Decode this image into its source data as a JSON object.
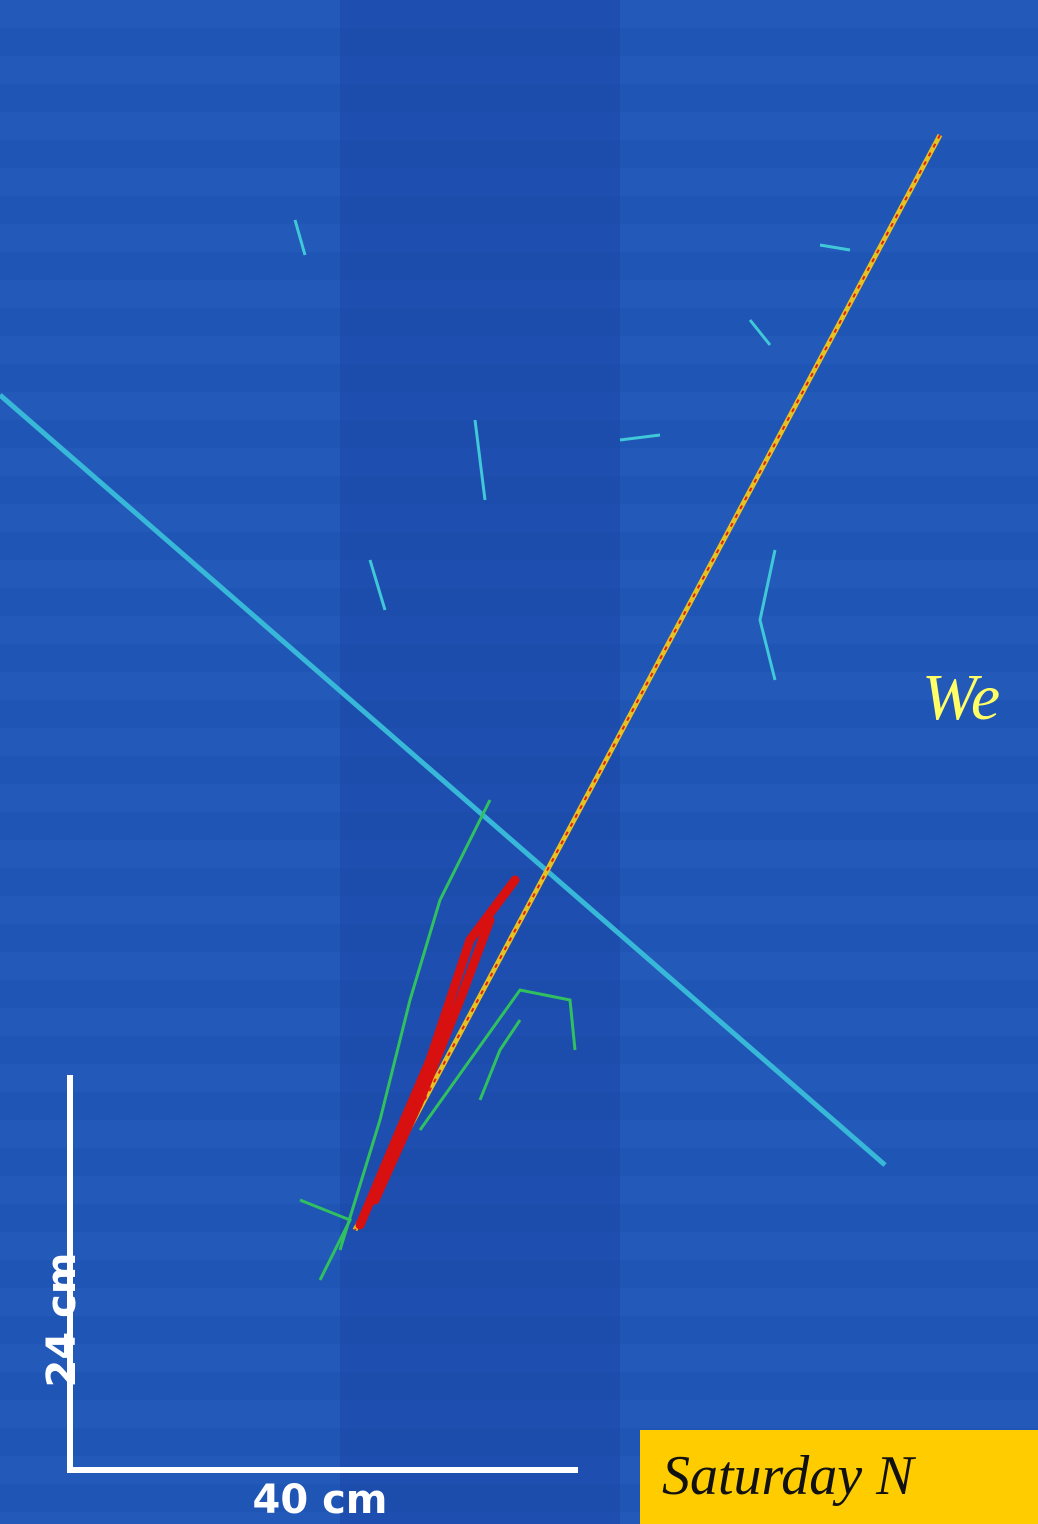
{
  "overlay": {
    "welcome": "We",
    "banner": "Saturday N"
  },
  "scale_bar": {
    "vertical": "24 cm",
    "horizontal": "40 cm"
  }
}
